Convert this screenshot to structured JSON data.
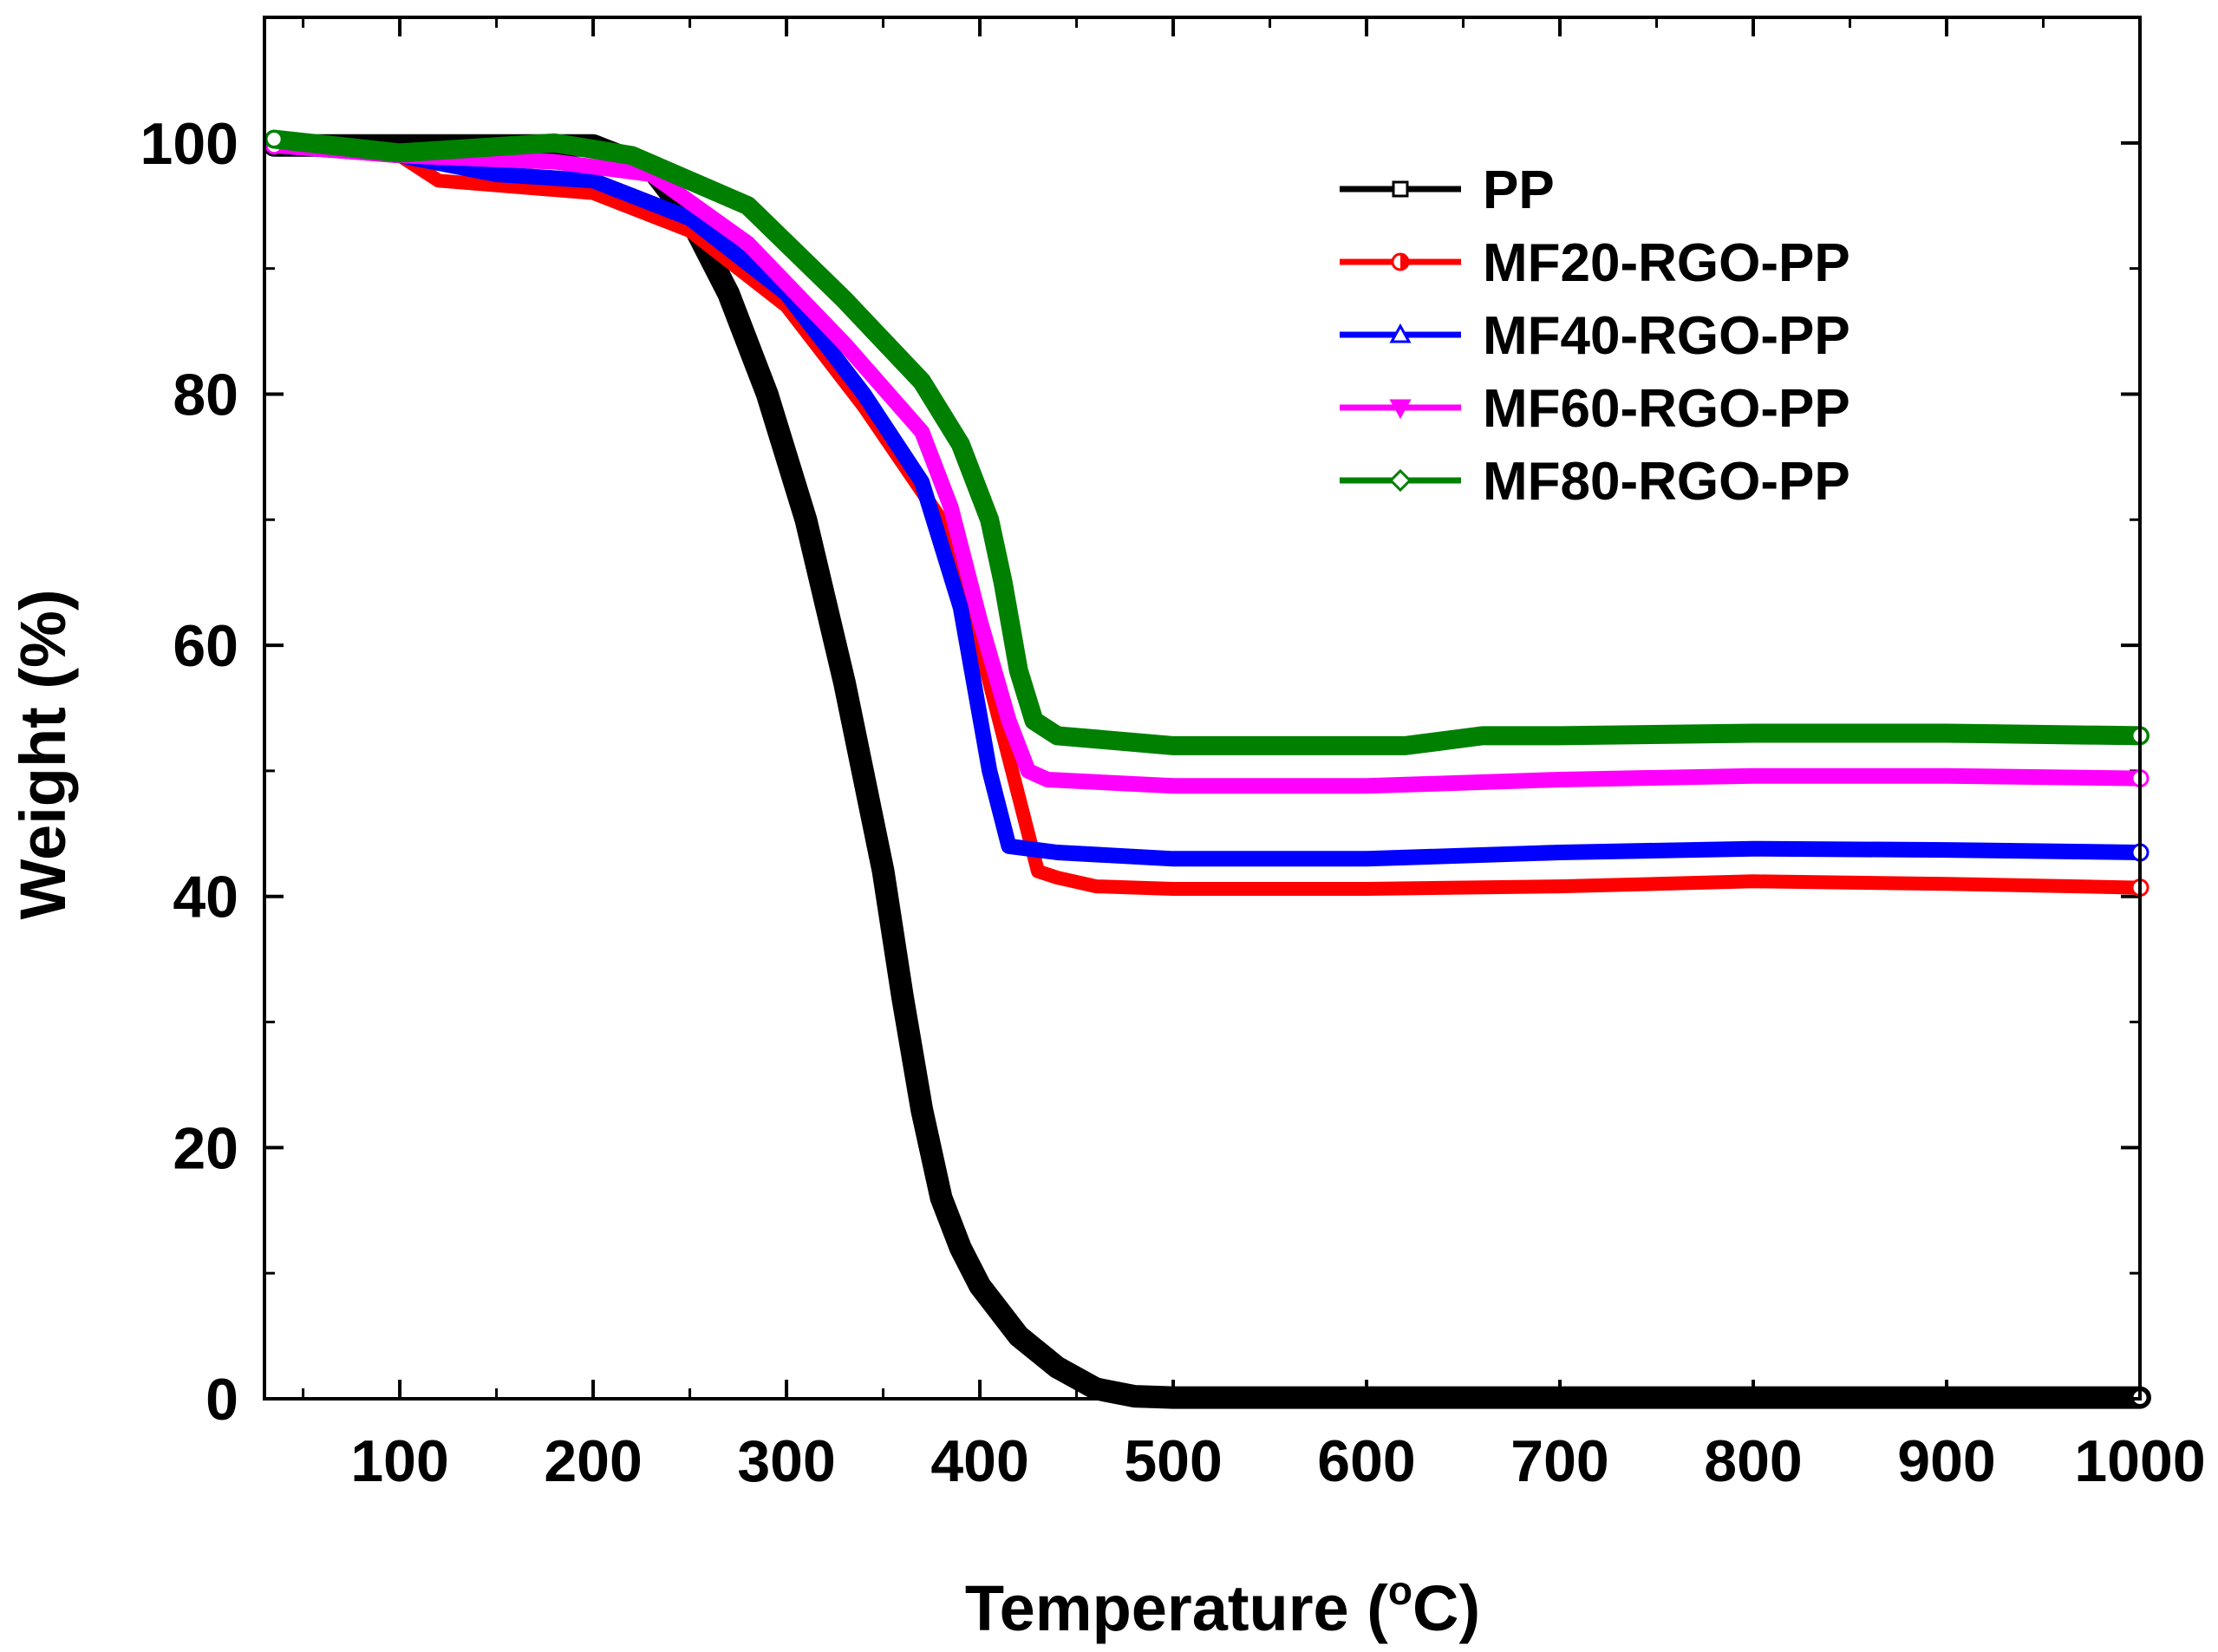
{
  "chart_data": {
    "type": "line",
    "xlabel": "Temperature (",
    "xlabel_sup": "o",
    "xlabel_tail": "C)",
    "ylabel": "Weight (%)",
    "xlim": [
      30,
      1000
    ],
    "ylim": [
      0,
      110
    ],
    "x_ticks": [
      100,
      200,
      300,
      400,
      500,
      600,
      700,
      800,
      900,
      1000
    ],
    "y_ticks": [
      0,
      20,
      40,
      60,
      80,
      100
    ],
    "legend_position": "top-right",
    "series": [
      {
        "name": "PP",
        "color": "#000000",
        "marker": "square",
        "x": [
          35,
          100,
          200,
          230,
          250,
          270,
          290,
          310,
          330,
          350,
          360,
          370,
          380,
          390,
          400,
          420,
          440,
          460,
          480,
          500,
          600,
          700,
          800,
          900,
          1000
        ],
        "y": [
          99.8,
          99.8,
          99.8,
          98,
          94,
          88,
          80,
          70,
          57,
          42,
          32,
          23,
          16,
          12,
          9,
          5,
          2.5,
          0.8,
          0.2,
          0.1,
          0.1,
          0.1,
          0.1,
          0.1,
          0.1
        ]
      },
      {
        "name": "MF20-RGO-PP",
        "color": "#ff0000",
        "marker": "half-circle",
        "x": [
          35,
          100,
          120,
          200,
          250,
          300,
          340,
          380,
          400,
          420,
          430,
          440,
          460,
          500,
          600,
          700,
          800,
          900,
          1000
        ],
        "y": [
          99.8,
          99,
          97,
          96,
          93,
          87,
          79,
          70,
          60,
          48,
          42,
          41.5,
          40.8,
          40.6,
          40.6,
          40.8,
          41.2,
          41,
          40.7
        ]
      },
      {
        "name": "MF40-RGO-PP",
        "color": "#0000ff",
        "marker": "triangle-up",
        "x": [
          35,
          100,
          150,
          200,
          250,
          300,
          340,
          370,
          390,
          405,
          415,
          440,
          500,
          600,
          700,
          800,
          900,
          1000
        ],
        "y": [
          99.8,
          99,
          97.5,
          97,
          94,
          88,
          80,
          73,
          63,
          50,
          44,
          43.5,
          43,
          43,
          43.5,
          43.8,
          43.7,
          43.5
        ]
      },
      {
        "name": "MF60-RGO-PP",
        "color": "#ff00ff",
        "marker": "triangle-down",
        "x": [
          35,
          100,
          180,
          230,
          280,
          330,
          370,
          385,
          400,
          415,
          425,
          435,
          500,
          600,
          700,
          800,
          900,
          1000
        ],
        "y": [
          99.8,
          99,
          98.5,
          97.5,
          92,
          84,
          77,
          71,
          62,
          54,
          50,
          49.3,
          48.8,
          48.8,
          49.3,
          49.6,
          49.6,
          49.4
        ]
      },
      {
        "name": "MF80-RGO-PP",
        "color": "#008000",
        "marker": "diamond",
        "x": [
          35,
          100,
          180,
          220,
          280,
          330,
          370,
          390,
          405,
          412,
          420,
          428,
          440,
          500,
          600,
          620,
          660,
          700,
          800,
          900,
          1000
        ],
        "y": [
          100.3,
          99.2,
          100,
          99,
          95,
          87.5,
          81,
          76,
          70,
          65,
          58,
          54,
          52.8,
          52,
          52,
          52,
          52.8,
          52.8,
          53,
          53,
          52.8
        ]
      }
    ]
  }
}
